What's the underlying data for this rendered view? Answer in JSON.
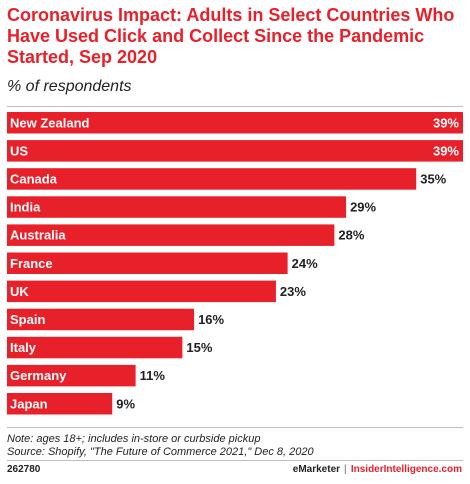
{
  "title": "Coronavirus Impact: Adults in Select Countries Who Have Used Click and Collect Since the Pandemic Started, Sep 2020",
  "subtitle": "% of respondents",
  "note": "Note: ages 18+; includes in-store or curbside pickup",
  "source": "Source: Shopify, \"The Future of Commerce 2021,\" Dec 8, 2020",
  "footer": {
    "id": "262780",
    "brand": "eMarketer",
    "separator": "|",
    "site": "InsiderIntelligence.com"
  },
  "colors": {
    "bar": "#e8202a",
    "title": "#e8202a"
  },
  "chart_data": {
    "type": "bar",
    "orientation": "horizontal",
    "categories": [
      "New Zealand",
      "US",
      "Canada",
      "India",
      "Australia",
      "France",
      "UK",
      "Spain",
      "Italy",
      "Germany",
      "Japan"
    ],
    "values": [
      39,
      39,
      35,
      29,
      28,
      24,
      23,
      16,
      15,
      11,
      9
    ],
    "value_labels": [
      "39%",
      "39%",
      "35%",
      "29%",
      "28%",
      "24%",
      "23%",
      "16%",
      "15%",
      "11%",
      "9%"
    ],
    "title": "",
    "xlabel": "",
    "ylabel": "",
    "xlim": [
      0,
      39
    ],
    "grid": false,
    "legend": "none"
  }
}
